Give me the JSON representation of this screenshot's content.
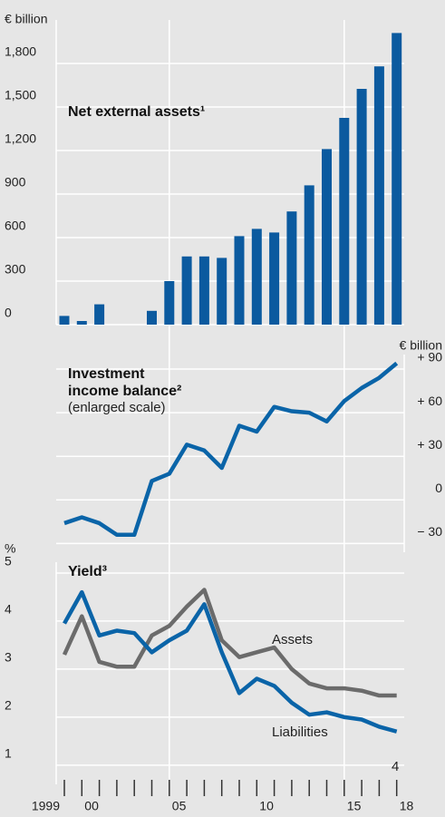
{
  "chart_data": [
    {
      "type": "bar",
      "title": "Net external assets¹",
      "y_label": "€ billion",
      "color": "#0b5a9f",
      "values": [
        60,
        25,
        140,
        0,
        0,
        95,
        300,
        470,
        470,
        460,
        610,
        660,
        635,
        780,
        960,
        1210,
        1425,
        1625,
        1780,
        2010
      ],
      "ylim": [
        0,
        2100
      ],
      "yticks": [
        0,
        300,
        600,
        900,
        {
          "value": 1200,
          "label": "1,200"
        },
        {
          "value": 1500,
          "label": "1,500"
        },
        {
          "value": 1800,
          "label": "1,800"
        }
      ],
      "grid": true
    },
    {
      "type": "line",
      "title": "Investment income balance²",
      "subtitle": "(enlarged scale)",
      "y_label": "€ billion",
      "series": [
        {
          "name": "Investment income balance",
          "color": "#0a64a8",
          "values": [
            -16,
            -12,
            -16,
            -24,
            -24,
            13,
            18,
            38,
            34,
            22,
            51,
            47,
            64,
            61,
            60,
            54,
            68,
            77,
            84,
            94
          ]
        }
      ],
      "ylim": [
        -36,
        100
      ],
      "yticks": [
        {
          "value": -30,
          "label": "− 30"
        },
        0,
        {
          "value": 30,
          "label": "+ 30"
        },
        {
          "value": 60,
          "label": "+ 60"
        },
        {
          "value": 90,
          "label": "+ 90"
        }
      ],
      "axis_side": "right",
      "grid": true
    },
    {
      "type": "line",
      "title": "Yield³",
      "y_label": "%",
      "note": "4",
      "categories": [
        "1999",
        "00",
        null,
        null,
        null,
        null,
        "05",
        null,
        null,
        null,
        null,
        "10",
        null,
        null,
        null,
        null,
        "15",
        null,
        null,
        "18"
      ],
      "series": [
        {
          "name": "Assets",
          "color": "#6b6b6b",
          "values": [
            3.3,
            4.1,
            3.15,
            3.05,
            3.05,
            3.7,
            3.9,
            4.3,
            4.65,
            3.6,
            3.25,
            3.35,
            3.45,
            3.0,
            2.7,
            2.6,
            2.6,
            2.55,
            2.45,
            2.45
          ]
        },
        {
          "name": "Liabilities",
          "color": "#0a64a8",
          "values": [
            3.95,
            4.6,
            3.7,
            3.8,
            3.75,
            3.35,
            3.6,
            3.8,
            4.35,
            3.35,
            2.5,
            2.8,
            2.65,
            2.3,
            2.05,
            2.1,
            2.0,
            1.95,
            1.8,
            1.7
          ]
        }
      ],
      "ylim": [
        0.6,
        6
      ],
      "yticks": [
        1,
        2,
        3,
        4,
        5
      ],
      "grid": true
    }
  ]
}
